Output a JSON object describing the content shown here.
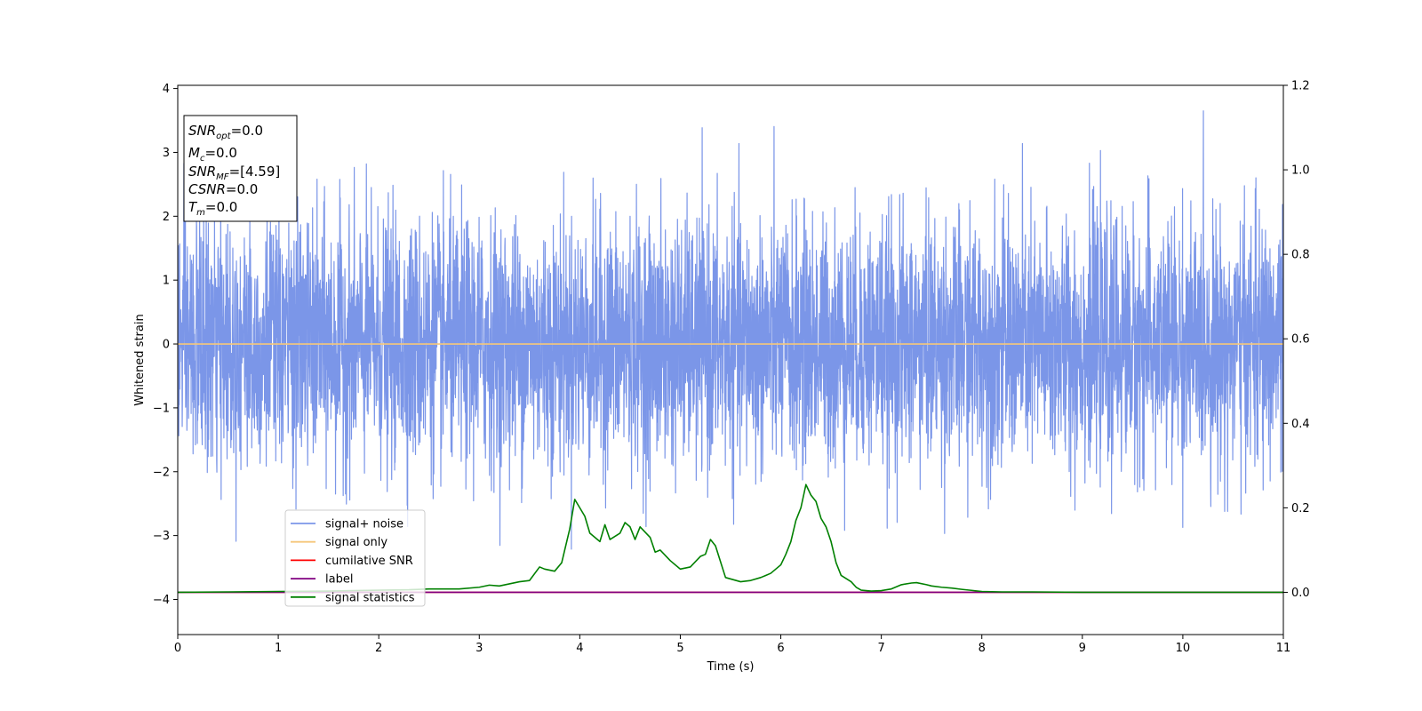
{
  "chart_data": {
    "type": "line",
    "xlabel": "Time (s)",
    "ylabel": "Whitened strain",
    "xlim": [
      0,
      11
    ],
    "ylim_left": [
      -4.55,
      4.05
    ],
    "ylim_right": [
      -0.1,
      1.2
    ],
    "x_ticks": [
      0,
      1,
      2,
      3,
      4,
      5,
      6,
      7,
      8,
      9,
      10,
      11
    ],
    "y_ticks_left": [
      4,
      3,
      2,
      1,
      0,
      -1,
      -2,
      -3,
      -4
    ],
    "y_ticks_right": [
      1.2,
      1.0,
      0.8,
      0.6,
      0.4,
      0.2,
      0.0
    ],
    "y_tick_labels_left": [
      "4",
      "3",
      "2",
      "1",
      "0",
      "−1",
      "−2",
      "−3",
      "−4"
    ],
    "y_tick_labels_right": [
      "1.2",
      "1.0",
      "0.8",
      "0.6",
      "0.4",
      "0.2",
      "0.0"
    ],
    "x_tick_labels": [
      "0",
      "1",
      "2",
      "3",
      "4",
      "5",
      "6",
      "7",
      "8",
      "9",
      "10",
      "11"
    ],
    "grid": false,
    "legend_position": "lower-left",
    "annotation": {
      "lines": [
        {
          "base": "SNR",
          "sub": "opt",
          "rest": "=0.0"
        },
        {
          "base": "M",
          "sub": "c",
          "rest": "=0.0"
        },
        {
          "base": "SNR",
          "sub": "MF",
          "rest": "=[4.59]"
        },
        {
          "base": "CSNR",
          "sub": "",
          "rest": "=0.0"
        },
        {
          "base": "T",
          "sub": "m",
          "rest": "=0.0"
        }
      ]
    },
    "series": [
      {
        "name": "signal+ noise",
        "color": "#7b96e8",
        "axis": "left",
        "kind": "noise",
        "duration": 11,
        "std": 0.95,
        "approx_range": [
          -4.15,
          3.65
        ]
      },
      {
        "name": "signal only",
        "color": "#f5c77a",
        "axis": "left",
        "x": [
          0,
          11
        ],
        "y": [
          0,
          0
        ]
      },
      {
        "name": "cumilative SNR",
        "color": "#ff0000",
        "axis": "right",
        "x": [
          0,
          11
        ],
        "y": [
          0,
          0
        ]
      },
      {
        "name": "label",
        "color": "#800080",
        "axis": "right",
        "x": [
          0,
          11
        ],
        "y": [
          0,
          0
        ]
      },
      {
        "name": "signal statistics",
        "color": "#008000",
        "axis": "right",
        "x": [
          0.0,
          0.5,
          1.0,
          1.5,
          2.0,
          2.3,
          2.5,
          2.6,
          2.8,
          3.0,
          3.1,
          3.2,
          3.3,
          3.4,
          3.5,
          3.6,
          3.65,
          3.75,
          3.82,
          3.9,
          3.95,
          4.0,
          4.05,
          4.1,
          4.2,
          4.25,
          4.3,
          4.4,
          4.45,
          4.5,
          4.55,
          4.6,
          4.7,
          4.75,
          4.8,
          4.9,
          5.0,
          5.1,
          5.2,
          5.25,
          5.3,
          5.35,
          5.45,
          5.6,
          5.7,
          5.8,
          5.85,
          5.9,
          5.95,
          6.0,
          6.05,
          6.1,
          6.15,
          6.2,
          6.25,
          6.3,
          6.35,
          6.4,
          6.45,
          6.5,
          6.55,
          6.6,
          6.7,
          6.75,
          6.8,
          6.9,
          7.0,
          7.1,
          7.2,
          7.3,
          7.35,
          7.45,
          7.5,
          7.6,
          7.7,
          7.8,
          8.0,
          8.2,
          8.5,
          9.0,
          9.5,
          10.0,
          10.5,
          11.0
        ],
        "y": [
          0.0,
          0.001,
          0.002,
          0.003,
          0.005,
          0.006,
          0.008,
          0.008,
          0.008,
          0.012,
          0.017,
          0.015,
          0.02,
          0.025,
          0.028,
          0.06,
          0.055,
          0.05,
          0.07,
          0.15,
          0.22,
          0.2,
          0.18,
          0.14,
          0.12,
          0.16,
          0.125,
          0.14,
          0.165,
          0.155,
          0.125,
          0.155,
          0.13,
          0.095,
          0.1,
          0.075,
          0.055,
          0.06,
          0.085,
          0.09,
          0.125,
          0.11,
          0.035,
          0.025,
          0.028,
          0.035,
          0.04,
          0.045,
          0.055,
          0.065,
          0.09,
          0.12,
          0.17,
          0.2,
          0.255,
          0.23,
          0.215,
          0.175,
          0.155,
          0.12,
          0.07,
          0.04,
          0.025,
          0.012,
          0.005,
          0.003,
          0.004,
          0.008,
          0.018,
          0.022,
          0.023,
          0.018,
          0.015,
          0.012,
          0.01,
          0.007,
          0.002,
          0.001,
          0.001,
          0.0,
          0.0,
          0.0,
          0.0,
          0.0
        ]
      }
    ]
  }
}
